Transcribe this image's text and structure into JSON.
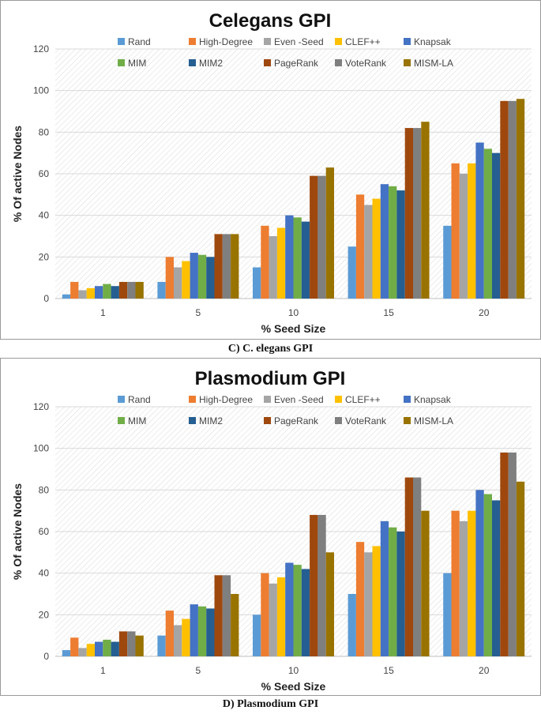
{
  "chart_data": [
    {
      "type": "bar",
      "title": "Celegans GPI",
      "caption": "C) C. elegans GPI",
      "xlabel": "% Seed Size",
      "ylabel": "% Of active Nodes",
      "ylim": [
        0,
        120
      ],
      "yticks": [
        0,
        20,
        40,
        60,
        80,
        100,
        120
      ],
      "categories": [
        "1",
        "5",
        "10",
        "15",
        "20"
      ],
      "legend_position": "top",
      "series": [
        {
          "name": "Rand",
          "color": "#5b9bd5",
          "values": [
            2,
            8,
            15,
            25,
            35
          ]
        },
        {
          "name": "High-Degree",
          "color": "#ed7d31",
          "values": [
            8,
            20,
            35,
            50,
            65
          ]
        },
        {
          "name": "Even -Seed",
          "color": "#a5a5a5",
          "values": [
            4,
            15,
            30,
            45,
            60
          ]
        },
        {
          "name": "CLEF++",
          "color": "#ffc000",
          "values": [
            5,
            18,
            34,
            48,
            65
          ]
        },
        {
          "name": "Knapsak",
          "color": "#4472c4",
          "values": [
            6,
            22,
            40,
            55,
            75
          ]
        },
        {
          "name": "MIM",
          "color": "#70ad47",
          "values": [
            7,
            21,
            39,
            54,
            72
          ]
        },
        {
          "name": "MIM2",
          "color": "#255e91",
          "values": [
            6,
            20,
            37,
            52,
            70
          ]
        },
        {
          "name": "PageRank",
          "color": "#9e480e",
          "values": [
            8,
            31,
            59,
            82,
            95
          ]
        },
        {
          "name": "VoteRank",
          "color": "#7f7f7f",
          "values": [
            8,
            31,
            59,
            82,
            95
          ]
        },
        {
          "name": "MISM-LA",
          "color": "#997300",
          "values": [
            8,
            31,
            63,
            85,
            96
          ]
        }
      ]
    },
    {
      "type": "bar",
      "title": "Plasmodium  GPI",
      "caption": "D) Plasmodium GPI",
      "xlabel": "% Seed Size",
      "ylabel": "% Of active Nodes",
      "ylim": [
        0,
        120
      ],
      "yticks": [
        0,
        20,
        40,
        60,
        80,
        100,
        120
      ],
      "categories": [
        "1",
        "5",
        "10",
        "15",
        "20"
      ],
      "legend_position": "top",
      "series": [
        {
          "name": "Rand",
          "color": "#5b9bd5",
          "values": [
            3,
            10,
            20,
            30,
            40
          ]
        },
        {
          "name": "High-Degree",
          "color": "#ed7d31",
          "values": [
            9,
            22,
            40,
            55,
            70
          ]
        },
        {
          "name": "Even -Seed",
          "color": "#a5a5a5",
          "values": [
            4,
            15,
            35,
            50,
            65
          ]
        },
        {
          "name": "CLEF++",
          "color": "#ffc000",
          "values": [
            6,
            18,
            38,
            53,
            70
          ]
        },
        {
          "name": "Knapsak",
          "color": "#4472c4",
          "values": [
            7,
            25,
            45,
            65,
            80
          ]
        },
        {
          "name": "MIM",
          "color": "#70ad47",
          "values": [
            8,
            24,
            44,
            62,
            78
          ]
        },
        {
          "name": "MIM2",
          "color": "#255e91",
          "values": [
            7,
            23,
            42,
            60,
            75
          ]
        },
        {
          "name": "PageRank",
          "color": "#9e480e",
          "values": [
            12,
            39,
            68,
            86,
            98
          ]
        },
        {
          "name": "VoteRank",
          "color": "#7f7f7f",
          "values": [
            12,
            39,
            68,
            86,
            98
          ]
        },
        {
          "name": "MISM-LA",
          "color": "#997300",
          "values": [
            10,
            30,
            50,
            70,
            84
          ]
        }
      ]
    }
  ]
}
